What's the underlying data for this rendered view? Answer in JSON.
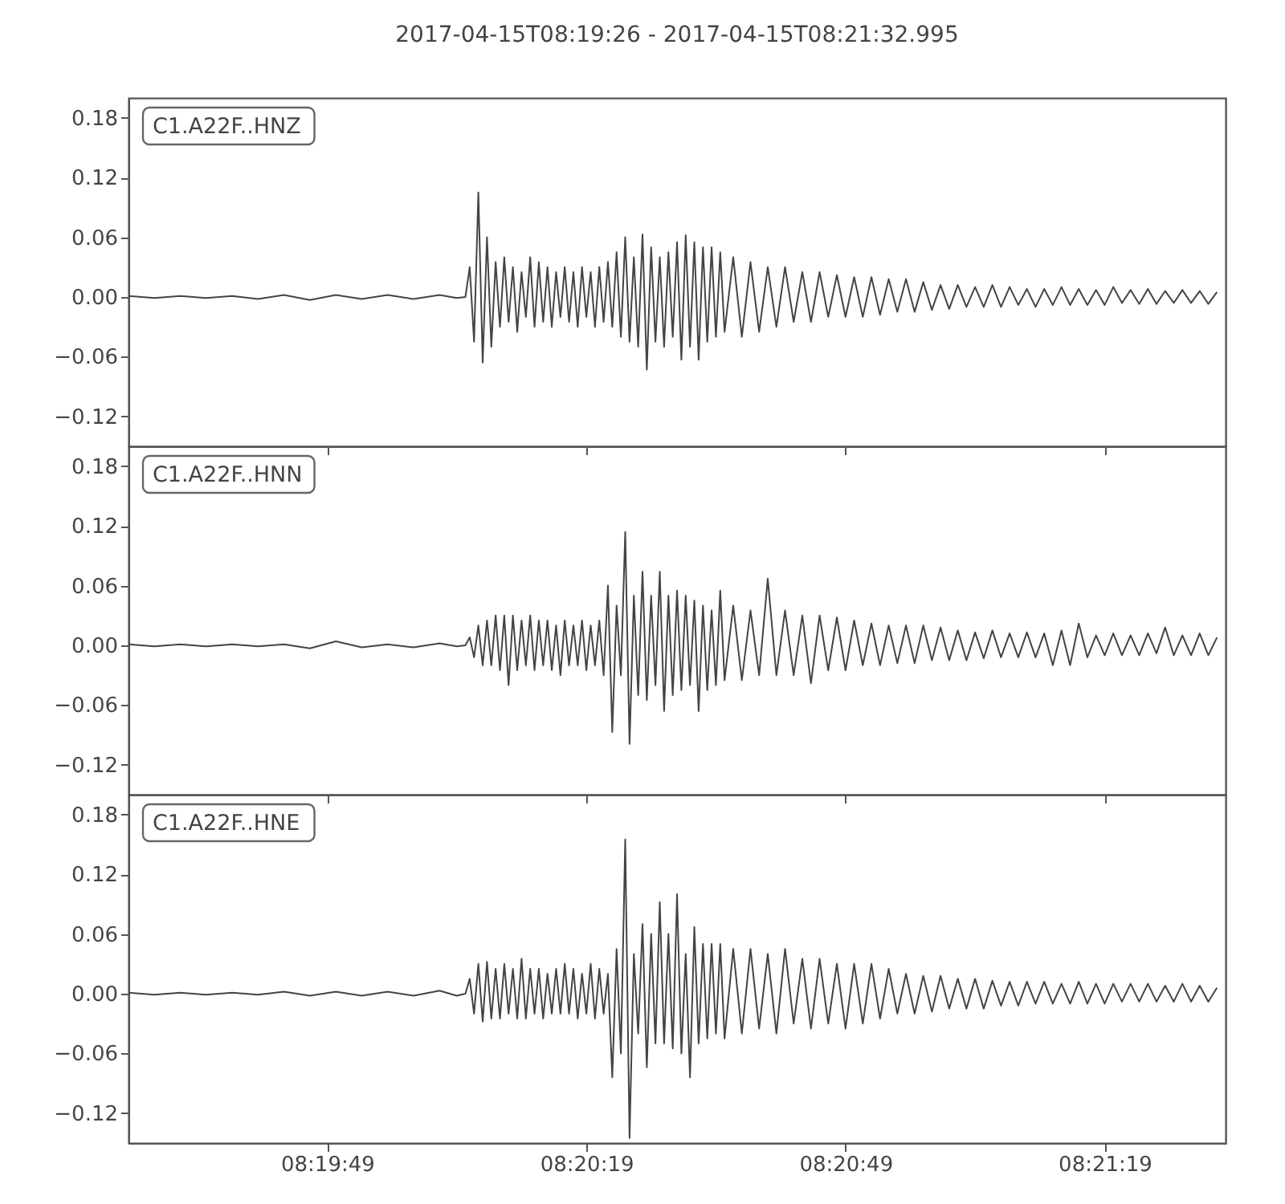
{
  "chart_data": [
    {
      "type": "line",
      "title": "2017-04-15T08:19:26  -  2017-04-15T08:21:32.995",
      "x": [
        "2017-04-15T08:19:26",
        "2017-04-15T08:19:29",
        "2017-04-15T08:19:32",
        "2017-04-15T08:19:35",
        "2017-04-15T08:19:38",
        "2017-04-15T08:19:41",
        "2017-04-15T08:19:44",
        "2017-04-15T08:19:47",
        "2017-04-15T08:19:50",
        "2017-04-15T08:19:53",
        "2017-04-15T08:19:56",
        "2017-04-15T08:19:59",
        "2017-04-15T08:20:02",
        "2017-04-15T08:20:04",
        "2017-04-15T08:20:05",
        "2017-04-15T08:20:05.5",
        "2017-04-15T08:20:06",
        "2017-04-15T08:20:06.5",
        "2017-04-15T08:20:07",
        "2017-04-15T08:20:07.5",
        "2017-04-15T08:20:08",
        "2017-04-15T08:20:08.5",
        "2017-04-15T08:20:09",
        "2017-04-15T08:20:09.5",
        "2017-04-15T08:20:10",
        "2017-04-15T08:20:10.5",
        "2017-04-15T08:20:11",
        "2017-04-15T08:20:11.5",
        "2017-04-15T08:20:12",
        "2017-04-15T08:20:12.5",
        "2017-04-15T08:20:13",
        "2017-04-15T08:20:13.5",
        "2017-04-15T08:20:14",
        "2017-04-15T08:20:14.5",
        "2017-04-15T08:20:15",
        "2017-04-15T08:20:15.5",
        "2017-04-15T08:20:16",
        "2017-04-15T08:20:16.5",
        "2017-04-15T08:20:17",
        "2017-04-15T08:20:17.5",
        "2017-04-15T08:20:18",
        "2017-04-15T08:20:18.5",
        "2017-04-15T08:20:19",
        "2017-04-15T08:20:19.5",
        "2017-04-15T08:20:20",
        "2017-04-15T08:20:20.5",
        "2017-04-15T08:20:21",
        "2017-04-15T08:20:21.5",
        "2017-04-15T08:20:22",
        "2017-04-15T08:20:22.5",
        "2017-04-15T08:20:23",
        "2017-04-15T08:20:23.5",
        "2017-04-15T08:20:24",
        "2017-04-15T08:20:24.5",
        "2017-04-15T08:20:25",
        "2017-04-15T08:20:25.5",
        "2017-04-15T08:20:26",
        "2017-04-15T08:20:26.5",
        "2017-04-15T08:20:27",
        "2017-04-15T08:20:27.5",
        "2017-04-15T08:20:28",
        "2017-04-15T08:20:28.5",
        "2017-04-15T08:20:29",
        "2017-04-15T08:20:29.5",
        "2017-04-15T08:20:30",
        "2017-04-15T08:20:30.5",
        "2017-04-15T08:20:31",
        "2017-04-15T08:20:31.5",
        "2017-04-15T08:20:32",
        "2017-04-15T08:20:32.5",
        "2017-04-15T08:20:33",
        "2017-04-15T08:20:33.5",
        "2017-04-15T08:20:34",
        "2017-04-15T08:20:34.5",
        "2017-04-15T08:20:35",
        "2017-04-15T08:20:36",
        "2017-04-15T08:20:37",
        "2017-04-15T08:20:38",
        "2017-04-15T08:20:39",
        "2017-04-15T08:20:40",
        "2017-04-15T08:20:41",
        "2017-04-15T08:20:42",
        "2017-04-15T08:20:43",
        "2017-04-15T08:20:44",
        "2017-04-15T08:20:45",
        "2017-04-15T08:20:46",
        "2017-04-15T08:20:47",
        "2017-04-15T08:20:48",
        "2017-04-15T08:20:49",
        "2017-04-15T08:20:50",
        "2017-04-15T08:20:51",
        "2017-04-15T08:20:52",
        "2017-04-15T08:20:53",
        "2017-04-15T08:20:54",
        "2017-04-15T08:20:55",
        "2017-04-15T08:20:56",
        "2017-04-15T08:20:57",
        "2017-04-15T08:20:58",
        "2017-04-15T08:20:59",
        "2017-04-15T08:21:00",
        "2017-04-15T08:21:01",
        "2017-04-15T08:21:02",
        "2017-04-15T08:21:03",
        "2017-04-15T08:21:04",
        "2017-04-15T08:21:05",
        "2017-04-15T08:21:06",
        "2017-04-15T08:21:07",
        "2017-04-15T08:21:08",
        "2017-04-15T08:21:09",
        "2017-04-15T08:21:10",
        "2017-04-15T08:21:11",
        "2017-04-15T08:21:12",
        "2017-04-15T08:21:13",
        "2017-04-15T08:21:14",
        "2017-04-15T08:21:15",
        "2017-04-15T08:21:16",
        "2017-04-15T08:21:17",
        "2017-04-15T08:21:18",
        "2017-04-15T08:21:19",
        "2017-04-15T08:21:20",
        "2017-04-15T08:21:21",
        "2017-04-15T08:21:22",
        "2017-04-15T08:21:23",
        "2017-04-15T08:21:24",
        "2017-04-15T08:21:25",
        "2017-04-15T08:21:26",
        "2017-04-15T08:21:27",
        "2017-04-15T08:21:28",
        "2017-04-15T08:21:29",
        "2017-04-15T08:21:30",
        "2017-04-15T08:21:31",
        "2017-04-15T08:21:32"
      ],
      "series": [
        {
          "name": "C1.A22F..HNZ",
          "color": "#444444",
          "values": [
            0.001,
            -0.001,
            0.001,
            -0.001,
            0.001,
            -0.002,
            0.002,
            -0.003,
            0.002,
            -0.002,
            0.002,
            -0.002,
            0.002,
            -0.001,
            0.0,
            0.03,
            -0.045,
            0.105,
            -0.066,
            0.06,
            -0.05,
            0.035,
            -0.03,
            0.04,
            -0.025,
            0.03,
            -0.035,
            0.025,
            -0.02,
            0.04,
            -0.03,
            0.035,
            -0.025,
            0.03,
            -0.03,
            0.025,
            -0.02,
            0.03,
            -0.025,
            0.025,
            -0.03,
            0.03,
            -0.02,
            0.025,
            -0.03,
            0.03,
            -0.025,
            0.035,
            -0.03,
            0.045,
            -0.04,
            0.06,
            -0.045,
            0.04,
            -0.05,
            0.063,
            -0.073,
            0.05,
            -0.045,
            0.04,
            -0.05,
            0.045,
            -0.04,
            0.055,
            -0.063,
            0.062,
            -0.05,
            0.055,
            -0.063,
            0.05,
            -0.045,
            0.05,
            -0.04,
            0.045,
            -0.035,
            0.04,
            -0.04,
            0.035,
            -0.035,
            0.03,
            -0.03,
            0.03,
            -0.025,
            0.025,
            -0.025,
            0.025,
            -0.02,
            0.022,
            -0.02,
            0.02,
            -0.02,
            0.02,
            -0.018,
            0.018,
            -0.015,
            0.018,
            -0.015,
            0.015,
            -0.013,
            0.012,
            -0.012,
            0.012,
            -0.01,
            0.01,
            -0.01,
            0.012,
            -0.01,
            0.01,
            -0.008,
            0.008,
            -0.01,
            0.008,
            -0.008,
            0.01,
            -0.008,
            0.008,
            -0.008,
            0.007,
            -0.008,
            0.01,
            -0.006,
            0.007,
            -0.007,
            0.008,
            -0.007,
            0.006,
            -0.006,
            0.007,
            -0.006,
            0.006,
            -0.007,
            0.005
          ]
        }
      ],
      "xlim": [
        "2017-04-15T08:19:26",
        "2017-04-15T08:21:32.995"
      ],
      "xticks": [
        {
          "value": "2017-04-15T08:19:49",
          "label": null
        },
        {
          "value": "2017-04-15T08:20:19",
          "label": null
        },
        {
          "value": "2017-04-15T08:20:49",
          "label": null
        },
        {
          "value": "2017-04-15T08:21:19",
          "label": null
        }
      ],
      "ylim": [
        -0.15,
        0.2
      ],
      "yticks": [
        {
          "value": -0.12,
          "label": "−0.12"
        },
        {
          "value": -0.06,
          "label": "−0.06"
        },
        {
          "value": 0,
          "label": "0.00"
        },
        0.06,
        0.12,
        0.18
      ],
      "tick_labels": "y"
    },
    {
      "type": "line",
      "x": [
        "2017-04-15T08:19:26",
        "2017-04-15T08:19:29",
        "2017-04-15T08:19:32",
        "2017-04-15T08:19:35",
        "2017-04-15T08:19:38",
        "2017-04-15T08:19:41",
        "2017-04-15T08:19:44",
        "2017-04-15T08:19:47",
        "2017-04-15T08:19:50",
        "2017-04-15T08:19:53",
        "2017-04-15T08:19:56",
        "2017-04-15T08:19:59",
        "2017-04-15T08:20:02",
        "2017-04-15T08:20:04",
        "2017-04-15T08:20:05",
        "2017-04-15T08:20:05.5",
        "2017-04-15T08:20:06",
        "2017-04-15T08:20:06.5",
        "2017-04-15T08:20:07",
        "2017-04-15T08:20:07.5",
        "2017-04-15T08:20:08",
        "2017-04-15T08:20:08.5",
        "2017-04-15T08:20:09",
        "2017-04-15T08:20:09.5",
        "2017-04-15T08:20:10",
        "2017-04-15T08:20:10.5",
        "2017-04-15T08:20:11",
        "2017-04-15T08:20:11.5",
        "2017-04-15T08:20:12",
        "2017-04-15T08:20:12.5",
        "2017-04-15T08:20:13",
        "2017-04-15T08:20:13.5",
        "2017-04-15T08:20:14",
        "2017-04-15T08:20:14.5",
        "2017-04-15T08:20:15",
        "2017-04-15T08:20:15.5",
        "2017-04-15T08:20:16",
        "2017-04-15T08:20:16.5",
        "2017-04-15T08:20:17",
        "2017-04-15T08:20:17.5",
        "2017-04-15T08:20:18",
        "2017-04-15T08:20:18.5",
        "2017-04-15T08:20:19",
        "2017-04-15T08:20:19.5",
        "2017-04-15T08:20:20",
        "2017-04-15T08:20:20.5",
        "2017-04-15T08:20:21",
        "2017-04-15T08:20:21.5",
        "2017-04-15T08:20:22",
        "2017-04-15T08:20:22.5",
        "2017-04-15T08:20:23",
        "2017-04-15T08:20:23.5",
        "2017-04-15T08:20:24",
        "2017-04-15T08:20:24.5",
        "2017-04-15T08:20:25",
        "2017-04-15T08:20:25.5",
        "2017-04-15T08:20:26",
        "2017-04-15T08:20:26.5",
        "2017-04-15T08:20:27",
        "2017-04-15T08:20:27.5",
        "2017-04-15T08:20:28",
        "2017-04-15T08:20:28.5",
        "2017-04-15T08:20:29",
        "2017-04-15T08:20:29.5",
        "2017-04-15T08:20:30",
        "2017-04-15T08:20:30.5",
        "2017-04-15T08:20:31",
        "2017-04-15T08:20:31.5",
        "2017-04-15T08:20:32",
        "2017-04-15T08:20:32.5",
        "2017-04-15T08:20:33",
        "2017-04-15T08:20:33.5",
        "2017-04-15T08:20:34",
        "2017-04-15T08:20:34.5",
        "2017-04-15T08:20:35",
        "2017-04-15T08:20:36",
        "2017-04-15T08:20:37",
        "2017-04-15T08:20:38",
        "2017-04-15T08:20:39",
        "2017-04-15T08:20:40",
        "2017-04-15T08:20:41",
        "2017-04-15T08:20:42",
        "2017-04-15T08:20:43",
        "2017-04-15T08:20:44",
        "2017-04-15T08:20:45",
        "2017-04-15T08:20:46",
        "2017-04-15T08:20:47",
        "2017-04-15T08:20:48",
        "2017-04-15T08:20:49",
        "2017-04-15T08:20:50",
        "2017-04-15T08:20:51",
        "2017-04-15T08:20:52",
        "2017-04-15T08:20:53",
        "2017-04-15T08:20:54",
        "2017-04-15T08:20:55",
        "2017-04-15T08:20:56",
        "2017-04-15T08:20:57",
        "2017-04-15T08:20:58",
        "2017-04-15T08:20:59",
        "2017-04-15T08:21:00",
        "2017-04-15T08:21:01",
        "2017-04-15T08:21:02",
        "2017-04-15T08:21:03",
        "2017-04-15T08:21:04",
        "2017-04-15T08:21:05",
        "2017-04-15T08:21:06",
        "2017-04-15T08:21:07",
        "2017-04-15T08:21:08",
        "2017-04-15T08:21:09",
        "2017-04-15T08:21:10",
        "2017-04-15T08:21:11",
        "2017-04-15T08:21:12",
        "2017-04-15T08:21:13",
        "2017-04-15T08:21:14",
        "2017-04-15T08:21:15",
        "2017-04-15T08:21:16",
        "2017-04-15T08:21:17",
        "2017-04-15T08:21:18",
        "2017-04-15T08:21:19",
        "2017-04-15T08:21:20",
        "2017-04-15T08:21:21",
        "2017-04-15T08:21:22",
        "2017-04-15T08:21:23",
        "2017-04-15T08:21:24",
        "2017-04-15T08:21:25",
        "2017-04-15T08:21:26",
        "2017-04-15T08:21:27",
        "2017-04-15T08:21:28",
        "2017-04-15T08:21:29",
        "2017-04-15T08:21:30",
        "2017-04-15T08:21:31",
        "2017-04-15T08:21:32"
      ],
      "series": [
        {
          "name": "C1.A22F..HNN",
          "color": "#444444",
          "values": [
            0.001,
            -0.001,
            0.001,
            -0.001,
            0.001,
            -0.001,
            0.001,
            -0.003,
            0.004,
            -0.002,
            0.001,
            -0.002,
            0.002,
            -0.001,
            0.0,
            0.008,
            -0.012,
            0.02,
            -0.02,
            0.025,
            -0.02,
            0.03,
            -0.025,
            0.03,
            -0.04,
            0.03,
            -0.025,
            0.025,
            -0.02,
            0.03,
            -0.025,
            0.025,
            -0.02,
            0.025,
            -0.025,
            0.02,
            -0.03,
            0.025,
            -0.02,
            0.02,
            -0.02,
            0.025,
            -0.025,
            0.02,
            -0.02,
            0.025,
            -0.03,
            0.06,
            -0.087,
            0.04,
            -0.03,
            0.114,
            -0.099,
            0.05,
            -0.05,
            0.074,
            -0.055,
            0.05,
            -0.04,
            0.074,
            -0.066,
            0.05,
            -0.05,
            0.055,
            -0.045,
            0.05,
            -0.04,
            0.045,
            -0.066,
            0.04,
            -0.045,
            0.035,
            -0.04,
            0.055,
            -0.035,
            0.04,
            -0.035,
            0.035,
            -0.03,
            0.067,
            -0.03,
            0.035,
            -0.03,
            0.03,
            -0.038,
            0.03,
            -0.025,
            0.028,
            -0.025,
            0.025,
            -0.02,
            0.022,
            -0.02,
            0.02,
            -0.018,
            0.02,
            -0.018,
            0.02,
            -0.015,
            0.018,
            -0.015,
            0.015,
            -0.015,
            0.013,
            -0.013,
            0.015,
            -0.012,
            0.012,
            -0.012,
            0.013,
            -0.012,
            0.012,
            -0.02,
            0.015,
            -0.02,
            0.022,
            -0.012,
            0.01,
            -0.01,
            0.012,
            -0.01,
            0.01,
            -0.01,
            0.012,
            -0.008,
            0.018,
            -0.01,
            0.01,
            -0.01,
            0.012,
            -0.01,
            0.008
          ]
        }
      ],
      "xlim": [
        "2017-04-15T08:19:26",
        "2017-04-15T08:21:32.995"
      ],
      "xticks": [
        {
          "value": "2017-04-15T08:19:49",
          "label": null
        },
        {
          "value": "2017-04-15T08:20:19",
          "label": null
        },
        {
          "value": "2017-04-15T08:20:49",
          "label": null
        },
        {
          "value": "2017-04-15T08:21:19",
          "label": null
        }
      ],
      "ylim": [
        -0.15,
        0.2
      ],
      "yticks": [
        {
          "value": -0.12,
          "label": "−0.12"
        },
        {
          "value": -0.06,
          "label": "−0.06"
        },
        {
          "value": 0,
          "label": "0.00"
        },
        0.06,
        0.12,
        0.18
      ],
      "tick_labels": "y"
    },
    {
      "type": "line",
      "x": [
        "2017-04-15T08:19:26",
        "2017-04-15T08:19:29",
        "2017-04-15T08:19:32",
        "2017-04-15T08:19:35",
        "2017-04-15T08:19:38",
        "2017-04-15T08:19:41",
        "2017-04-15T08:19:44",
        "2017-04-15T08:19:47",
        "2017-04-15T08:19:50",
        "2017-04-15T08:19:53",
        "2017-04-15T08:19:56",
        "2017-04-15T08:19:59",
        "2017-04-15T08:20:02",
        "2017-04-15T08:20:04",
        "2017-04-15T08:20:05",
        "2017-04-15T08:20:05.5",
        "2017-04-15T08:20:06",
        "2017-04-15T08:20:06.5",
        "2017-04-15T08:20:07",
        "2017-04-15T08:20:07.5",
        "2017-04-15T08:20:08",
        "2017-04-15T08:20:08.5",
        "2017-04-15T08:20:09",
        "2017-04-15T08:20:09.5",
        "2017-04-15T08:20:10",
        "2017-04-15T08:20:10.5",
        "2017-04-15T08:20:11",
        "2017-04-15T08:20:11.5",
        "2017-04-15T08:20:12",
        "2017-04-15T08:20:12.5",
        "2017-04-15T08:20:13",
        "2017-04-15T08:20:13.5",
        "2017-04-15T08:20:14",
        "2017-04-15T08:20:14.5",
        "2017-04-15T08:20:15",
        "2017-04-15T08:20:15.5",
        "2017-04-15T08:20:16",
        "2017-04-15T08:20:16.5",
        "2017-04-15T08:20:17",
        "2017-04-15T08:20:17.5",
        "2017-04-15T08:20:18",
        "2017-04-15T08:20:18.5",
        "2017-04-15T08:20:19",
        "2017-04-15T08:20:19.5",
        "2017-04-15T08:20:20",
        "2017-04-15T08:20:20.5",
        "2017-04-15T08:20:21",
        "2017-04-15T08:20:21.5",
        "2017-04-15T08:20:22",
        "2017-04-15T08:20:22.5",
        "2017-04-15T08:20:23",
        "2017-04-15T08:20:23.5",
        "2017-04-15T08:20:24",
        "2017-04-15T08:20:24.5",
        "2017-04-15T08:20:25",
        "2017-04-15T08:20:25.5",
        "2017-04-15T08:20:26",
        "2017-04-15T08:20:26.5",
        "2017-04-15T08:20:27",
        "2017-04-15T08:20:27.5",
        "2017-04-15T08:20:28",
        "2017-04-15T08:20:28.5",
        "2017-04-15T08:20:29",
        "2017-04-15T08:20:29.5",
        "2017-04-15T08:20:30",
        "2017-04-15T08:20:30.5",
        "2017-04-15T08:20:31",
        "2017-04-15T08:20:31.5",
        "2017-04-15T08:20:32",
        "2017-04-15T08:20:32.5",
        "2017-04-15T08:20:33",
        "2017-04-15T08:20:33.5",
        "2017-04-15T08:20:34",
        "2017-04-15T08:20:34.5",
        "2017-04-15T08:20:35",
        "2017-04-15T08:20:36",
        "2017-04-15T08:20:37",
        "2017-04-15T08:20:38",
        "2017-04-15T08:20:39",
        "2017-04-15T08:20:40",
        "2017-04-15T08:20:41",
        "2017-04-15T08:20:42",
        "2017-04-15T08:20:43",
        "2017-04-15T08:20:44",
        "2017-04-15T08:20:45",
        "2017-04-15T08:20:46",
        "2017-04-15T08:20:47",
        "2017-04-15T08:20:48",
        "2017-04-15T08:20:49",
        "2017-04-15T08:20:50",
        "2017-04-15T08:20:51",
        "2017-04-15T08:20:52",
        "2017-04-15T08:20:53",
        "2017-04-15T08:20:54",
        "2017-04-15T08:20:55",
        "2017-04-15T08:20:56",
        "2017-04-15T08:20:57",
        "2017-04-15T08:20:58",
        "2017-04-15T08:20:59",
        "2017-04-15T08:21:00",
        "2017-04-15T08:21:01",
        "2017-04-15T08:21:02",
        "2017-04-15T08:21:03",
        "2017-04-15T08:21:04",
        "2017-04-15T08:21:05",
        "2017-04-15T08:21:06",
        "2017-04-15T08:21:07",
        "2017-04-15T08:21:08",
        "2017-04-15T08:21:09",
        "2017-04-15T08:21:10",
        "2017-04-15T08:21:11",
        "2017-04-15T08:21:12",
        "2017-04-15T08:21:13",
        "2017-04-15T08:21:14",
        "2017-04-15T08:21:15",
        "2017-04-15T08:21:16",
        "2017-04-15T08:21:17",
        "2017-04-15T08:21:18",
        "2017-04-15T08:21:19",
        "2017-04-15T08:21:20",
        "2017-04-15T08:21:21",
        "2017-04-15T08:21:22",
        "2017-04-15T08:21:23",
        "2017-04-15T08:21:24",
        "2017-04-15T08:21:25",
        "2017-04-15T08:21:26",
        "2017-04-15T08:21:27",
        "2017-04-15T08:21:28",
        "2017-04-15T08:21:29",
        "2017-04-15T08:21:30",
        "2017-04-15T08:21:31",
        "2017-04-15T08:21:32"
      ],
      "series": [
        {
          "name": "C1.A22F..HNE",
          "color": "#444444",
          "values": [
            0.001,
            -0.001,
            0.001,
            -0.001,
            0.001,
            -0.001,
            0.002,
            -0.002,
            0.002,
            -0.002,
            0.002,
            -0.002,
            0.003,
            -0.002,
            0.0,
            0.015,
            -0.02,
            0.03,
            -0.028,
            0.032,
            -0.025,
            0.025,
            -0.025,
            0.03,
            -0.02,
            0.025,
            -0.025,
            0.035,
            -0.025,
            0.025,
            -0.02,
            0.025,
            -0.025,
            0.02,
            -0.02,
            0.025,
            -0.02,
            0.03,
            -0.02,
            0.025,
            -0.025,
            0.02,
            -0.02,
            0.03,
            -0.025,
            0.025,
            -0.02,
            0.02,
            -0.084,
            0.045,
            -0.06,
            0.155,
            -0.145,
            0.04,
            -0.04,
            0.07,
            -0.074,
            0.06,
            -0.05,
            0.092,
            -0.05,
            0.06,
            -0.055,
            0.1,
            -0.06,
            0.04,
            -0.084,
            0.067,
            -0.05,
            0.05,
            -0.045,
            0.05,
            -0.04,
            0.05,
            -0.045,
            0.045,
            -0.04,
            0.045,
            -0.035,
            0.04,
            -0.04,
            0.045,
            -0.03,
            0.035,
            -0.035,
            0.035,
            -0.03,
            0.03,
            -0.035,
            0.03,
            -0.03,
            0.03,
            -0.025,
            0.025,
            -0.02,
            0.02,
            -0.02,
            0.018,
            -0.018,
            0.018,
            -0.015,
            0.015,
            -0.015,
            0.015,
            -0.015,
            0.013,
            -0.012,
            0.012,
            -0.012,
            0.012,
            -0.01,
            0.012,
            -0.01,
            0.01,
            -0.01,
            0.012,
            -0.01,
            0.01,
            -0.01,
            0.01,
            -0.008,
            0.01,
            -0.008,
            0.01,
            -0.008,
            0.008,
            -0.008,
            0.01,
            -0.008,
            0.008,
            -0.008,
            0.006
          ]
        }
      ],
      "xlim": [
        "2017-04-15T08:19:26",
        "2017-04-15T08:21:32.995"
      ],
      "xticks": [
        {
          "value": "2017-04-15T08:19:49",
          "label": "08:19:49"
        },
        {
          "value": "2017-04-15T08:20:19",
          "label": "08:20:19"
        },
        {
          "value": "2017-04-15T08:20:49",
          "label": "08:20:49"
        },
        {
          "value": "2017-04-15T08:21:19",
          "label": "08:21:19"
        }
      ],
      "ylim": [
        -0.15,
        0.2
      ],
      "yticks": [
        {
          "value": -0.12,
          "label": "−0.12"
        },
        {
          "value": -0.06,
          "label": "−0.06"
        },
        {
          "value": 0,
          "label": "0.00"
        },
        0.06,
        0.12,
        0.18
      ]
    }
  ]
}
